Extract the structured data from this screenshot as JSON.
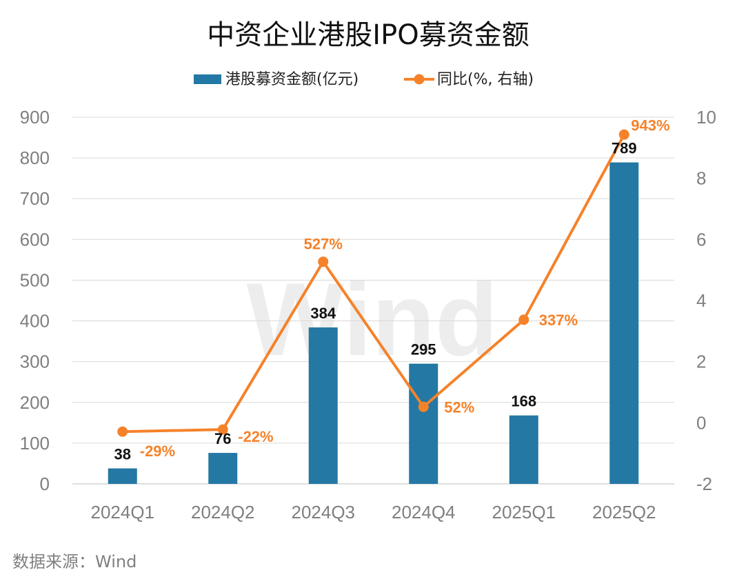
{
  "chart_data": {
    "type": "bar",
    "title": "中资企业港股IPO募资金额",
    "categories": [
      "2024Q1",
      "2024Q2",
      "2024Q3",
      "2024Q4",
      "2025Q1",
      "2025Q2"
    ],
    "series": [
      {
        "name": "港股募资金额(亿元)",
        "type": "bar",
        "axis": "left",
        "color": "#2378a4",
        "values": [
          38,
          76,
          384,
          295,
          168,
          789
        ],
        "labels": [
          "38",
          "76",
          "384",
          "295",
          "168",
          "789"
        ]
      },
      {
        "name": "同比(%, 右轴)",
        "type": "line",
        "axis": "right",
        "color": "#f5822a",
        "values": [
          -0.29,
          -0.22,
          5.27,
          0.52,
          3.37,
          9.43
        ],
        "labels": [
          "-29%",
          "-22%",
          "527%",
          "52%",
          "337%",
          "943%"
        ]
      }
    ],
    "y_left": {
      "range": [
        0,
        900
      ],
      "ticks": [
        "0",
        "100",
        "200",
        "300",
        "400",
        "500",
        "600",
        "700",
        "800",
        "900"
      ]
    },
    "y_right": {
      "range": [
        -2,
        10
      ],
      "ticks": [
        "-2",
        "0",
        "2",
        "4",
        "6",
        "8",
        "10"
      ]
    },
    "grid": true,
    "legend_position": "top"
  },
  "watermark": "Wind",
  "source": "数据来源：Wind"
}
